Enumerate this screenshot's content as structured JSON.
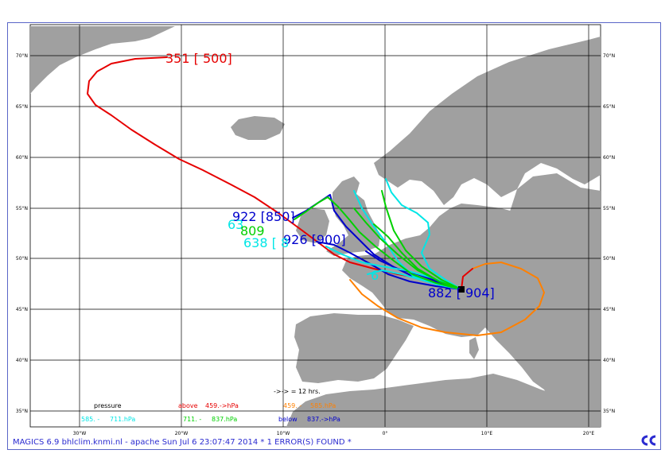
{
  "map": {
    "lat_labels": [
      "70°N",
      "65°N",
      "60°N",
      "55°N",
      "50°N",
      "45°N",
      "40°N",
      "35°N"
    ],
    "lon_labels": [
      "30°W",
      "20°W",
      "10°W",
      "0°",
      "10°E",
      "20°E"
    ],
    "legend": {
      "arrow_note": "->-> = 12 hrs.",
      "pressure_title": "pressure",
      "above": "above",
      "above_value": "459.->hPa",
      "range_1": "459. -",
      "range_1_value": "585.hPa",
      "range_2": "585. -",
      "range_2_value": "711.hPa",
      "range_3": "711. -",
      "range_3_value": "837.hPa",
      "below": "below",
      "below_value": "837.->hPa"
    },
    "colors": {
      "land": "#a0a0a0",
      "sea": "#ffffff",
      "grid": "#000000",
      "above": "#e60000",
      "range_1": "#ff8000",
      "range_2": "#00e6e6",
      "range_3": "#00d000",
      "below": "#0000cc"
    },
    "trajectory_labels": {
      "red": "351 [ 500]",
      "blue_1": "922 [850]",
      "blue_2": "926 [900]",
      "cyan_1": "638 [ 8",
      "cyan_2": "63",
      "green": "809",
      "origin": "882 [ 904]",
      "cyan_3": "6"
    }
  },
  "footer": {
    "text": "MAGICS 6.9 bhlclim.knmi.nl - apache Sun Jul  6 23:07:47 2014 *    1 ERROR(S) FOUND *"
  }
}
